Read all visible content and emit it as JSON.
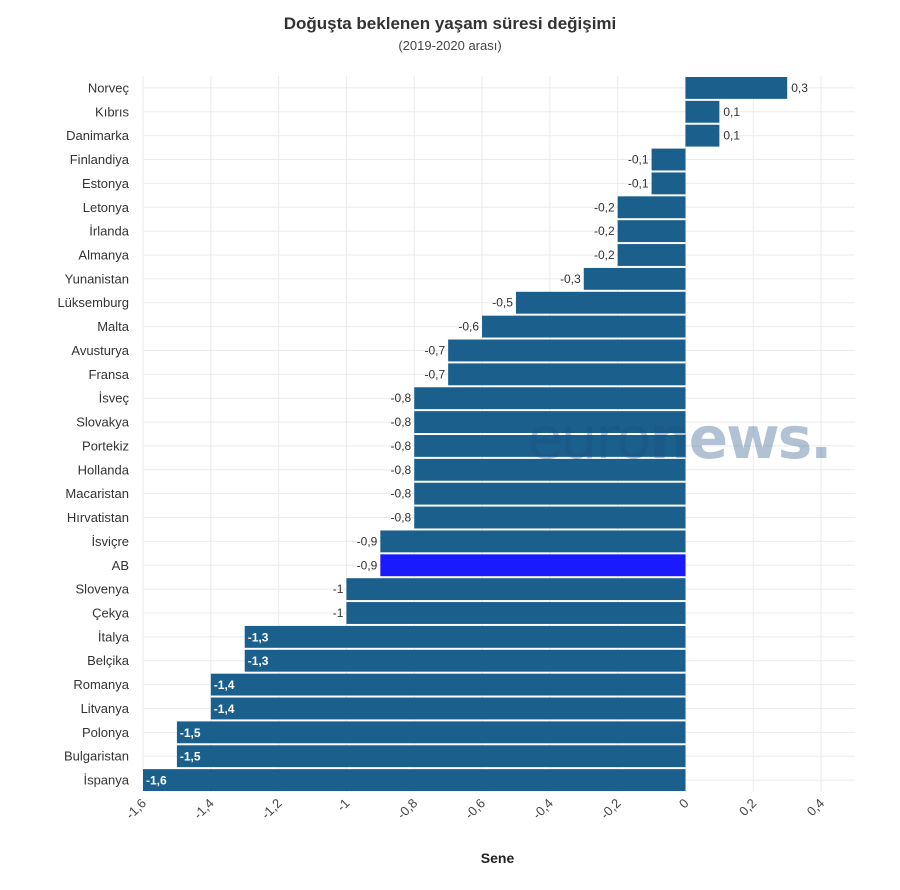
{
  "chart_data": {
    "type": "bar",
    "orientation": "horizontal",
    "title": "Doğuşta beklenen yaşam süresi değişimi",
    "subtitle": "(2019-2020 arası)",
    "xlabel": "Sene",
    "ylabel": "",
    "xlim": [
      -1.6,
      0.5
    ],
    "x_ticks": [
      "-1,6",
      "-1,4",
      "-1,2",
      "-1",
      "-0,8",
      "-0,6",
      "-0,4",
      "-0,2",
      "0",
      "0,2",
      "0,4"
    ],
    "x_tick_values": [
      -1.6,
      -1.4,
      -1.2,
      -1.0,
      -0.8,
      -0.6,
      -0.4,
      -0.2,
      0,
      0.2,
      0.4
    ],
    "grid": true,
    "categories": [
      "Norveç",
      "Kıbrıs",
      "Danimarka",
      "Finlandiya",
      "Estonya",
      "Letonya",
      "İrlanda",
      "Almanya",
      "Yunanistan",
      "Lüksemburg",
      "Malta",
      "Avusturya",
      "Fransa",
      "İsveç",
      "Slovakya",
      "Portekiz",
      "Hollanda",
      "Macaristan",
      "Hırvatistan",
      "İsviçre",
      "AB",
      "Slovenya",
      "Çekya",
      "İtalya",
      "Belçika",
      "Romanya",
      "Litvanya",
      "Polonya",
      "Bulgaristan",
      "İspanya"
    ],
    "values": [
      0.3,
      0.1,
      0.1,
      -0.1,
      -0.1,
      -0.2,
      -0.2,
      -0.2,
      -0.3,
      -0.5,
      -0.6,
      -0.7,
      -0.7,
      -0.8,
      -0.8,
      -0.8,
      -0.8,
      -0.8,
      -0.8,
      -0.9,
      -0.9,
      -1,
      -1,
      -1.3,
      -1.3,
      -1.4,
      -1.4,
      -1.5,
      -1.5,
      -1.6
    ],
    "labels": [
      "0,3",
      "0,1",
      "0,1",
      "-0,1",
      "-0,1",
      "-0,2",
      "-0,2",
      "-0,2",
      "-0,3",
      "-0,5",
      "-0,6",
      "-0,7",
      "-0,7",
      "-0,8",
      "-0,8",
      "-0,8",
      "-0,8",
      "-0,8",
      "-0,8",
      "-0,9",
      "-0,9",
      "-1",
      "-1",
      "-1,3",
      "-1,3",
      "-1,4",
      "-1,4",
      "-1,5",
      "-1,5",
      "-1,6"
    ],
    "colors": {
      "default": "#1b5f8c",
      "highlight": "#1a1aff"
    },
    "highlight_category": "AB"
  },
  "watermark": {
    "part1": "euro",
    "part2": "news."
  }
}
